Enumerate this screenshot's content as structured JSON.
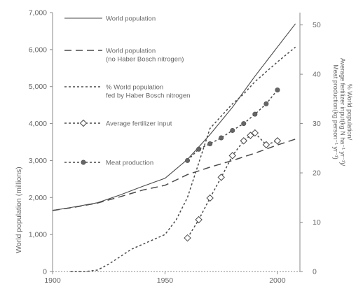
{
  "colors": {
    "axis": "#8a8a8a",
    "line": "#4a4a4a",
    "marker_open": "#ffffff",
    "marker_fill": "#666666",
    "background": "#ffffff"
  },
  "chart_data": {
    "type": "line",
    "title": "",
    "xlabel": "",
    "ylabel_left": "World population (millions)",
    "ylabel_right": [
      "% World population/",
      "Average fertilizer input(kg N ha⁻¹ yr⁻¹)/",
      "Meat production(kg person⁻¹ yr⁻¹)"
    ],
    "xlim": [
      1900,
      2010
    ],
    "ylim_left": [
      0,
      7000
    ],
    "ylim_right": [
      0,
      52.5
    ],
    "x_ticks": [
      1900,
      1950,
      2000
    ],
    "x_tick_labels": [
      "1900",
      "1950",
      "2000"
    ],
    "y_left_ticks": [
      0,
      1000,
      2000,
      3000,
      4000,
      5000,
      6000,
      7000
    ],
    "y_left_tick_labels": [
      "0",
      "1,000",
      "2,000",
      "3,000",
      "4,000",
      "5,000",
      "6,000",
      "7,000"
    ],
    "y_right_ticks": [
      0,
      10,
      20,
      30,
      40,
      50
    ],
    "y_right_tick_labels": [
      "0",
      "10",
      "20",
      "30",
      "40",
      "50"
    ],
    "grid": false,
    "legend_position": "top-left",
    "series": [
      {
        "name": "World population",
        "axis": "left",
        "style": "solid",
        "x": [
          1900,
          1910,
          1920,
          1930,
          1940,
          1950,
          1960,
          1970,
          1980,
          1990,
          2000,
          2008
        ],
        "values": [
          1650,
          1750,
          1860,
          2070,
          2300,
          2520,
          3030,
          3700,
          4440,
          5280,
          6070,
          6700
        ]
      },
      {
        "name": "World population\n(no Haber Bosch nitrogen)",
        "axis": "left",
        "style": "dashed",
        "x": [
          1900,
          1910,
          1920,
          1930,
          1940,
          1950,
          1960,
          1970,
          1980,
          1990,
          2000,
          2008
        ],
        "values": [
          1650,
          1740,
          1850,
          2020,
          2200,
          2330,
          2620,
          2820,
          3000,
          3200,
          3420,
          3580
        ]
      },
      {
        "name": "% World population\nfed by Haber Bosch nitrogen",
        "axis": "right",
        "style": "dotted",
        "x": [
          1908,
          1915,
          1920,
          1925,
          1930,
          1935,
          1940,
          1945,
          1950,
          1955,
          1960,
          1965,
          1970,
          1975,
          1980,
          1985,
          1990,
          1995,
          2000,
          2008
        ],
        "values": [
          0,
          0,
          0.3,
          1.5,
          3,
          4.5,
          5.5,
          6.5,
          7.5,
          10.5,
          15,
          22,
          29,
          31.5,
          34,
          36,
          38.5,
          40.5,
          42.5,
          45.5
        ]
      },
      {
        "name": "Average fertilizer input",
        "axis": "right",
        "style": "dotted",
        "marker": "open-diamond",
        "x": [
          1960,
          1965,
          1970,
          1975,
          1980,
          1985,
          1988,
          1990,
          1995,
          2000
        ],
        "values": [
          6.8,
          10.5,
          14.9,
          19.1,
          23.5,
          26.5,
          27.6,
          28.1,
          25.7,
          26.5
        ]
      },
      {
        "name": "Meat production",
        "axis": "right",
        "style": "dotted",
        "marker": "filled-circle",
        "x": [
          1960,
          1965,
          1970,
          1975,
          1980,
          1985,
          1990,
          1995,
          2000
        ],
        "values": [
          22.5,
          24.8,
          25.9,
          27.1,
          28.6,
          30.0,
          31.9,
          34.0,
          36.8
        ]
      }
    ]
  }
}
